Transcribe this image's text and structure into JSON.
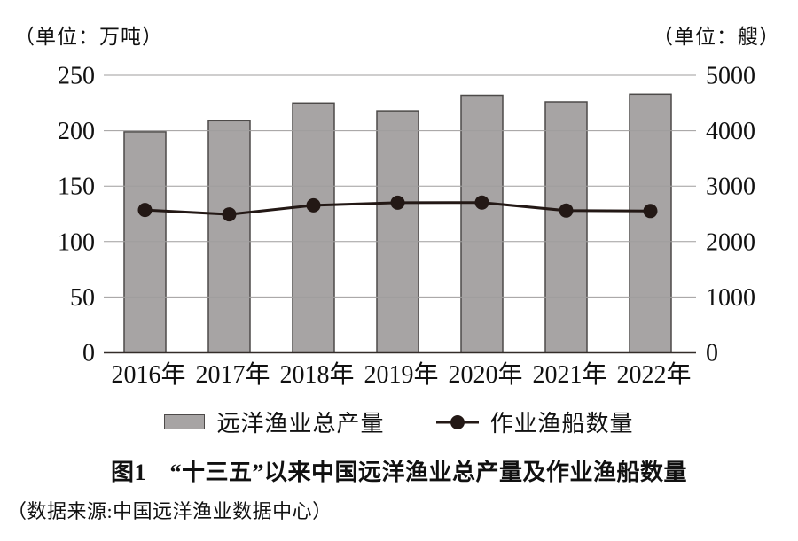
{
  "units": {
    "left": "（单位：万吨）",
    "right": "（单位：艘）"
  },
  "chart_data": {
    "type": "bar",
    "subtype": "dual-axis bar + line combo",
    "categories": [
      "2016年",
      "2017年",
      "2018年",
      "2019年",
      "2020年",
      "2021年",
      "2022年"
    ],
    "series": [
      {
        "name": "远洋渔业总产量",
        "type": "bar",
        "axis": "left",
        "unit": "万吨",
        "values": [
          199,
          209,
          225,
          218,
          232,
          226,
          233
        ]
      },
      {
        "name": "作业渔船数量",
        "type": "line",
        "axis": "right",
        "unit": "艘",
        "values": [
          2571,
          2491,
          2654,
          2701,
          2705,
          2559,
          2551
        ]
      }
    ],
    "left_axis": {
      "label": "（单位：万吨）",
      "min": 0,
      "max": 250,
      "step": 50,
      "ticks": [
        "0",
        "50",
        "100",
        "150",
        "200",
        "250"
      ]
    },
    "right_axis": {
      "label": "（单位：艘）",
      "min": 0,
      "max": 5000,
      "step": 1000,
      "ticks": [
        "0",
        "1000",
        "2000",
        "3000",
        "4000",
        "5000"
      ]
    },
    "grid": true,
    "legend_position": "bottom",
    "title": "图1　“十三五”以来中国远洋渔业总产量及作业渔船数量"
  },
  "legend": {
    "items": [
      {
        "label": "远洋渔业总产量",
        "marker": "bar-swatch"
      },
      {
        "label": "作业渔船数量",
        "marker": "line-dot"
      }
    ]
  },
  "caption": {
    "title": "图1　“十三五”以来中国远洋渔业总产量及作业渔船数量",
    "source": "（数据来源:中国远洋渔业数据中心）"
  },
  "colors": {
    "bar_fill": "#a7a4a4",
    "bar_border": "#4d4a49",
    "line": "#231815",
    "grid": "#9f9d9d",
    "axis": "#332c29",
    "text": "#111111"
  }
}
